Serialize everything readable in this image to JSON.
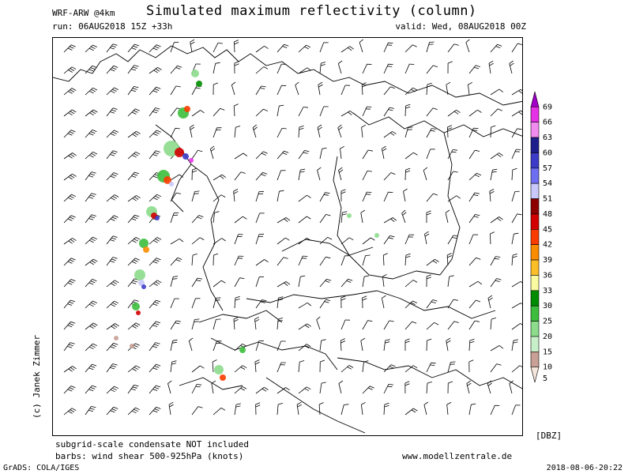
{
  "header": {
    "title": "Simulated maximum reflectivity (column)",
    "model": "WRF-ARW @4km",
    "run": "run: 06AUG2018 15Z +33h",
    "valid": "valid: Wed, 08AUG2018 00Z"
  },
  "side": {
    "copyright": "(c) Janek Zimmer"
  },
  "footer": {
    "note1": "subgrid-scale condensate NOT included",
    "note2": "barbs: wind shear 500-925hPa (knots)",
    "website": "www.modellzentrale.de",
    "software": "GrADS: COLA/IGES",
    "generated": "2018-08-06-20:22"
  },
  "legend": {
    "unit": "[DBZ]",
    "levels": [
      {
        "label": "69",
        "color": "#a000c8"
      },
      {
        "label": "66",
        "color": "#e632e6"
      },
      {
        "label": "63",
        "color": "#f08cf0"
      },
      {
        "label": "60",
        "color": "#1e1e8c"
      },
      {
        "label": "57",
        "color": "#3c3cc8"
      },
      {
        "label": "54",
        "color": "#6e6ef0"
      },
      {
        "label": "51",
        "color": "#c8c8fa"
      },
      {
        "label": "48",
        "color": "#8c0000"
      },
      {
        "label": "45",
        "color": "#d20000"
      },
      {
        "label": "42",
        "color": "#fa3c00"
      },
      {
        "label": "39",
        "color": "#fa8c00"
      },
      {
        "label": "36",
        "color": "#fabe28"
      },
      {
        "label": "33",
        "color": "#fafaa0"
      },
      {
        "label": "30",
        "color": "#008c00"
      },
      {
        "label": "25",
        "color": "#3cbe3c"
      },
      {
        "label": "20",
        "color": "#8cdc8c"
      },
      {
        "label": "15",
        "color": "#c8f0c8"
      },
      {
        "label": "10",
        "color": "#c8a096"
      },
      {
        "label": "5",
        "color": "#f5e6dc"
      }
    ]
  },
  "map": {
    "projection": "lambert-conformal",
    "region": "Central Europe",
    "features": [
      "coastlines",
      "country-borders",
      "wind-barbs",
      "reflectivity-cells"
    ]
  }
}
